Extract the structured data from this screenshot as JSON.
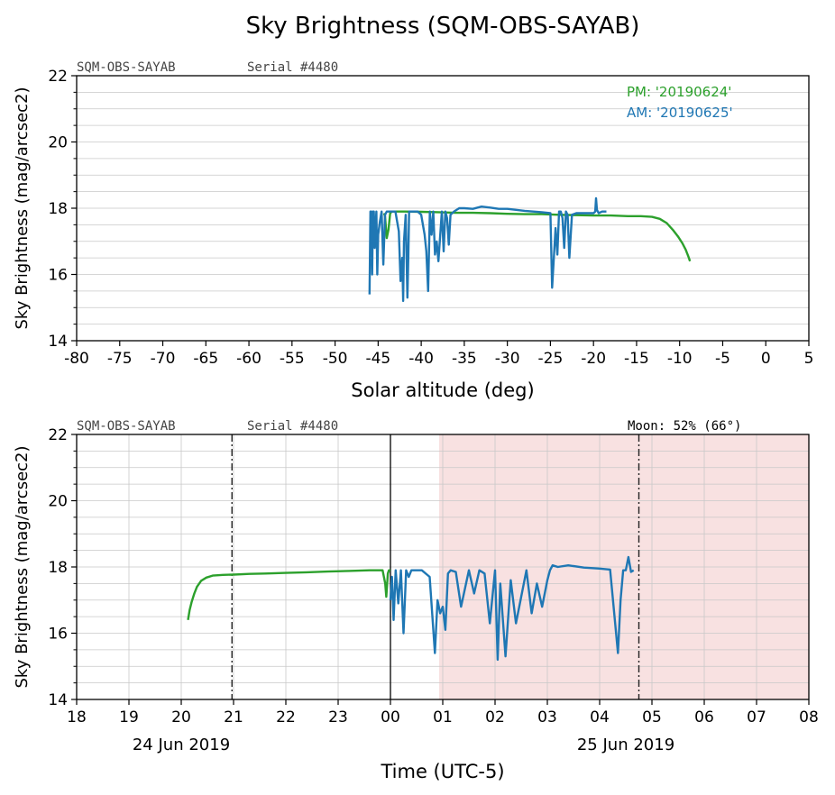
{
  "figure": {
    "title": "Sky Brightness (SQM-OBS-SAYAB)"
  },
  "colors": {
    "pm": "#2ca02c",
    "am": "#1f77b4",
    "moon_shade": "#f8e1e1",
    "annotation": "#444444"
  },
  "chart_data": [
    {
      "type": "line",
      "id": "altitude",
      "header_left": "SQM-OBS-SAYAB",
      "header_mid": "Serial #4480",
      "xlabel": "Solar altitude (deg)",
      "ylabel": "Sky Brightness (mag/arcsec2)",
      "xlim": [
        -80,
        5
      ],
      "ylim": [
        14,
        22
      ],
      "xticks": [
        -80,
        -75,
        -70,
        -65,
        -60,
        -55,
        -50,
        -45,
        -40,
        -35,
        -30,
        -25,
        -20,
        -15,
        -10,
        -5,
        0,
        5
      ],
      "yticks": [
        14,
        16,
        18,
        20,
        22
      ],
      "minor_yticks": [
        14.5,
        15,
        15.5,
        16.5,
        17,
        17.5,
        18.5,
        19,
        19.5,
        20.5,
        21,
        21.5
      ],
      "legend": [
        "PM: '20190624'",
        "AM: '20190625'"
      ],
      "series": [
        {
          "name": "PM: '20190624'",
          "color": "pm",
          "x": [
            -8.8,
            -9.0,
            -9.3,
            -9.7,
            -10.2,
            -10.8,
            -11.5,
            -12.3,
            -13.2,
            -14.5,
            -16.0,
            -18.0,
            -20.0,
            -22.0,
            -24.0,
            -26.0,
            -28.0,
            -30.0,
            -32.0,
            -34.0,
            -36.0,
            -38.0,
            -40.0,
            -42.0,
            -43.0,
            -43.4,
            -43.6,
            -43.8,
            -44.0,
            -44.2,
            -44.3
          ],
          "y": [
            16.4,
            16.55,
            16.75,
            16.95,
            17.15,
            17.35,
            17.55,
            17.68,
            17.74,
            17.76,
            17.76,
            17.78,
            17.78,
            17.79,
            17.8,
            17.82,
            17.82,
            17.83,
            17.85,
            17.86,
            17.86,
            17.88,
            17.89,
            17.9,
            17.9,
            17.9,
            17.85,
            17.35,
            17.1,
            17.75,
            17.85
          ]
        },
        {
          "name": "AM: '20190625'",
          "color": "am",
          "x": [
            -46.0,
            -45.9,
            -45.8,
            -45.7,
            -45.6,
            -45.5,
            -45.4,
            -45.2,
            -45.1,
            -45.0,
            -44.8,
            -44.6,
            -44.4,
            -44.2,
            -44.0,
            -43.6,
            -43.0,
            -42.6,
            -42.4,
            -42.2,
            -42.1,
            -42.0,
            -41.8,
            -41.6,
            -41.5,
            -41.4,
            -41.2,
            -41.0,
            -40.8,
            -40.4,
            -40.0,
            -39.6,
            -39.4,
            -39.2,
            -39.0,
            -38.8,
            -38.6,
            -38.4,
            -38.2,
            -38.0,
            -37.6,
            -37.4,
            -37.2,
            -37.0,
            -36.8,
            -36.6,
            -36.2,
            -35.6,
            -35.0,
            -34.0,
            -33.0,
            -32.0,
            -31.0,
            -30.0,
            -29.0,
            -28.0,
            -27.0,
            -26.0,
            -25.0,
            -24.8,
            -24.6,
            -24.4,
            -24.2,
            -24.0,
            -23.8,
            -23.6,
            -23.4,
            -23.2,
            -23.0,
            -22.8,
            -22.5,
            -22.0,
            -21.0,
            -20.0,
            -19.8,
            -19.7,
            -19.6,
            -19.4,
            -19.0,
            -18.5
          ],
          "y": [
            15.4,
            17.9,
            17.9,
            16.0,
            17.9,
            17.9,
            16.8,
            17.9,
            16.0,
            17.2,
            17.6,
            17.9,
            16.3,
            17.8,
            17.9,
            17.9,
            17.9,
            17.3,
            15.8,
            16.5,
            15.2,
            17.0,
            17.8,
            15.3,
            16.5,
            17.9,
            17.9,
            17.9,
            17.9,
            17.9,
            17.8,
            17.2,
            16.7,
            15.5,
            17.9,
            17.2,
            17.9,
            16.6,
            17.0,
            16.4,
            17.9,
            16.7,
            17.9,
            17.7,
            16.9,
            17.8,
            17.9,
            18.0,
            18.0,
            17.98,
            18.05,
            18.02,
            17.98,
            17.98,
            17.95,
            17.92,
            17.9,
            17.88,
            17.85,
            15.6,
            16.5,
            17.4,
            16.6,
            17.9,
            17.9,
            17.7,
            16.8,
            17.9,
            17.8,
            16.5,
            17.8,
            17.85,
            17.85,
            17.85,
            17.9,
            18.3,
            17.95,
            17.85,
            17.9,
            17.9
          ]
        }
      ]
    },
    {
      "type": "line",
      "id": "time",
      "header_left": "SQM-OBS-SAYAB",
      "header_mid": "Serial #4480",
      "header_right": "Moon: 52% (66°)",
      "xlabel": "Time (UTC-5)",
      "ylabel": "Sky Brightness (mag/arcsec2)",
      "xlim": [
        18,
        32
      ],
      "ylim": [
        14,
        22
      ],
      "xticks": [
        18,
        19,
        20,
        21,
        22,
        23,
        24,
        25,
        26,
        27,
        28,
        29,
        30,
        31,
        32
      ],
      "xtick_labels": [
        "18",
        "19",
        "20",
        "21",
        "22",
        "23",
        "00",
        "01",
        "02",
        "03",
        "04",
        "05",
        "06",
        "07",
        "08"
      ],
      "yticks": [
        14,
        16,
        18,
        20,
        22
      ],
      "minor_yticks": [
        14.5,
        15,
        15.5,
        16.5,
        17,
        17.5,
        18.5,
        19,
        19.5,
        20.5,
        21,
        21.5
      ],
      "date_labels": [
        {
          "x": 20,
          "text": "24 Jun 2019"
        },
        {
          "x": 28.5,
          "text": "25 Jun 2019"
        }
      ],
      "midnight": 24,
      "twilight_lines": [
        20.97,
        28.75
      ],
      "moon_shade": [
        24.93,
        32
      ],
      "series": [
        {
          "name": "PM: '20190624'",
          "color": "pm",
          "x": [
            20.13,
            20.16,
            20.2,
            20.25,
            20.3,
            20.38,
            20.48,
            20.6,
            20.8,
            21.0,
            21.3,
            21.6,
            22.0,
            22.4,
            22.8,
            23.2,
            23.6,
            23.85,
            23.9,
            23.92,
            23.95,
            23.97,
            24.0
          ],
          "y": [
            16.4,
            16.7,
            16.95,
            17.2,
            17.4,
            17.58,
            17.68,
            17.74,
            17.76,
            17.77,
            17.79,
            17.8,
            17.82,
            17.84,
            17.86,
            17.88,
            17.9,
            17.9,
            17.5,
            17.1,
            17.8,
            17.9,
            17.9
          ]
        },
        {
          "name": "AM: '20190625'",
          "color": "am",
          "x": [
            24.0,
            24.03,
            24.06,
            24.1,
            24.15,
            24.2,
            24.25,
            24.3,
            24.35,
            24.4,
            24.5,
            24.6,
            24.75,
            24.85,
            24.9,
            24.95,
            25.0,
            25.05,
            25.1,
            25.15,
            25.25,
            25.35,
            25.5,
            25.6,
            25.7,
            25.8,
            25.9,
            26.0,
            26.05,
            26.1,
            26.2,
            26.3,
            26.4,
            26.5,
            26.6,
            26.7,
            26.8,
            26.9,
            27.0,
            27.05,
            27.1,
            27.2,
            27.4,
            27.7,
            28.0,
            28.2,
            28.35,
            28.4,
            28.45,
            28.5,
            28.55,
            28.6,
            28.65
          ],
          "y": [
            17.0,
            17.7,
            16.4,
            17.9,
            16.9,
            17.9,
            16.0,
            17.9,
            17.7,
            17.9,
            17.9,
            17.9,
            17.7,
            15.4,
            17.0,
            16.6,
            16.8,
            16.1,
            17.8,
            17.9,
            17.85,
            16.8,
            17.9,
            17.2,
            17.9,
            17.8,
            16.3,
            17.9,
            15.2,
            17.5,
            15.3,
            17.6,
            16.3,
            17.1,
            17.9,
            16.6,
            17.5,
            16.8,
            17.6,
            17.9,
            18.05,
            18.0,
            18.05,
            17.98,
            17.95,
            17.92,
            15.4,
            17.0,
            17.9,
            17.9,
            18.3,
            17.85,
            17.9
          ]
        }
      ]
    }
  ]
}
